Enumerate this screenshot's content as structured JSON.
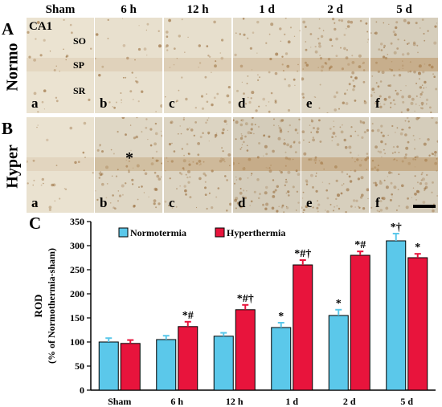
{
  "micrographs": {
    "column_headers": [
      "Sham",
      "6 h",
      "12 h",
      "1 d",
      "2 d",
      "5 d"
    ],
    "rows": [
      {
        "panel": "A",
        "group": "Normo",
        "tiles": [
          "a",
          "b",
          "c",
          "d",
          "e",
          "f"
        ],
        "staining": [
          0.05,
          0.12,
          0.18,
          0.3,
          0.5,
          0.75
        ]
      },
      {
        "panel": "B",
        "group": "Hyper",
        "tiles": [
          "a",
          "b",
          "c",
          "d",
          "e",
          "f"
        ],
        "staining": [
          0.06,
          0.45,
          0.55,
          0.8,
          0.7,
          0.78
        ]
      }
    ],
    "region_label": "CA1",
    "layers": [
      "SO",
      "SP",
      "SR"
    ],
    "asterisk": "*"
  },
  "chart_data": {
    "panel": "C",
    "type": "bar",
    "categories": [
      "Sham",
      "6 h",
      "12 h",
      "1 d",
      "2 d",
      "5 d"
    ],
    "series": [
      {
        "name": "Normotermia",
        "color": "#5bc8ea",
        "values": [
          100,
          105,
          112,
          130,
          155,
          310
        ],
        "errors": [
          8,
          8,
          7,
          10,
          12,
          15
        ],
        "marks": [
          "",
          "",
          "",
          "*",
          "*",
          "*†"
        ]
      },
      {
        "name": "Hyperthermia",
        "color": "#e8143c",
        "values": [
          97,
          132,
          167,
          260,
          280,
          275
        ],
        "errors": [
          7,
          10,
          10,
          10,
          8,
          8
        ],
        "marks": [
          "",
          "*#",
          "*#†",
          "*#†",
          "*#",
          "*"
        ]
      }
    ],
    "ylabel_line1": "ROD",
    "ylabel_line2": "(% of Normothermia-sham)",
    "ylim": [
      0,
      350
    ],
    "yticks": [
      0,
      50,
      100,
      150,
      200,
      250,
      300,
      350
    ],
    "grid": false,
    "legend": "top-left"
  }
}
